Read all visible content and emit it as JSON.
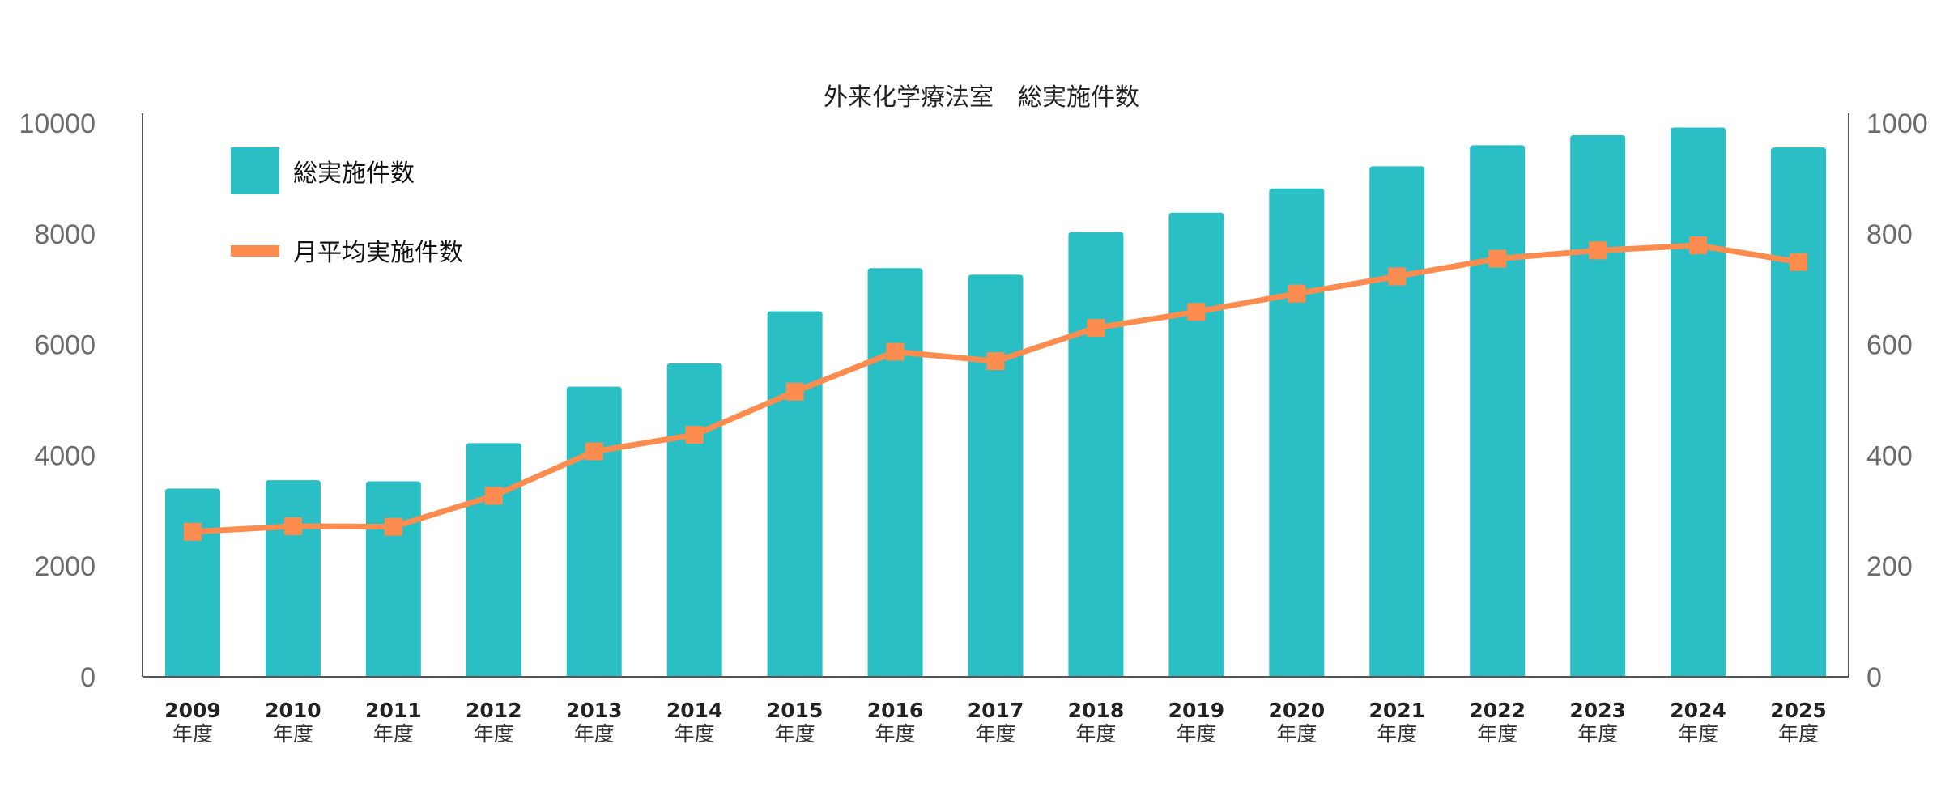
{
  "chart_data": {
    "type": "bar",
    "title": "外来化学療法室　総実施件数",
    "categories": [
      "2009",
      "2010",
      "2011",
      "2012",
      "2013",
      "2014",
      "2015",
      "2016",
      "2017",
      "2018",
      "2019",
      "2020",
      "2021",
      "2022",
      "2023",
      "2024",
      "2025"
    ],
    "category_unit": "年度",
    "series": [
      {
        "name": "総実施件数",
        "type": "bar",
        "axis": "left",
        "color": "#29bfc4",
        "values": [
          3400,
          3550,
          3530,
          4220,
          5240,
          5660,
          6600,
          7380,
          7260,
          8030,
          8380,
          8820,
          9220,
          9600,
          9780,
          9920,
          9560
        ]
      },
      {
        "name": "月平均実施件数",
        "type": "line",
        "axis": "right",
        "color": "#ff8c4f",
        "marker": "square",
        "values": [
          262,
          272,
          271,
          327,
          407,
          437,
          515,
          587,
          570,
          630,
          659,
          692,
          723,
          755,
          770,
          779,
          749
        ]
      }
    ],
    "y_left": {
      "ticks": [
        "0",
        "2000",
        "4000",
        "6000",
        "8000",
        "10000"
      ],
      "ylim": [
        0,
        10000
      ]
    },
    "y_right": {
      "ticks": [
        "0",
        "200",
        "400",
        "600",
        "800",
        "1000"
      ],
      "ylim": [
        0,
        1000
      ]
    },
    "grid": false,
    "legend_position": "top-left"
  }
}
